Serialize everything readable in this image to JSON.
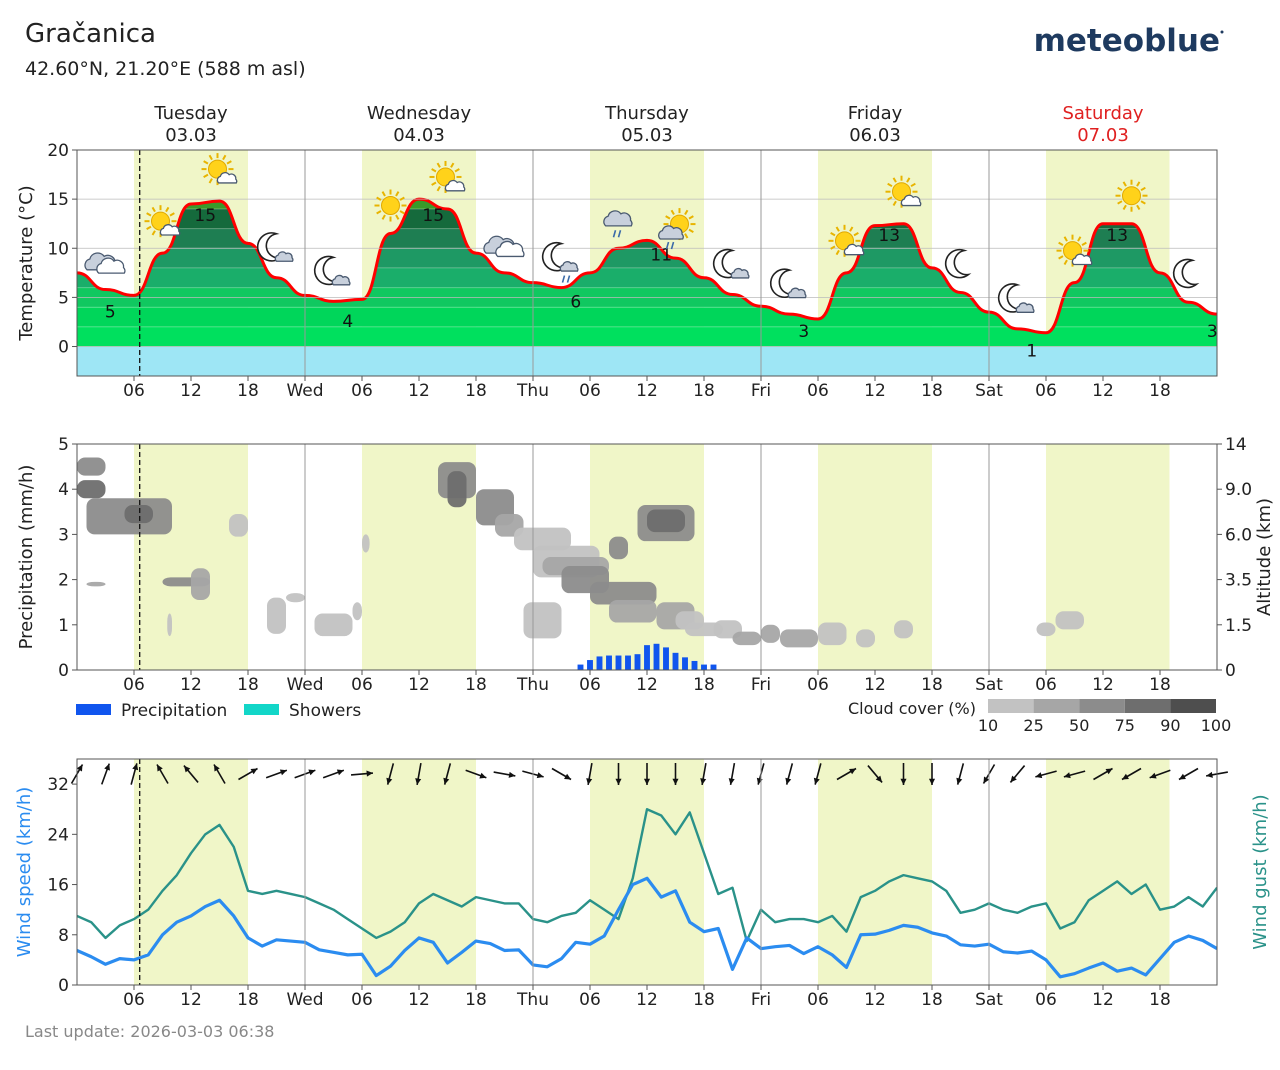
{
  "header": {
    "location": "Gračanica",
    "coords": "42.60°N, 21.20°E (588 m asl)",
    "logo": "meteoblue"
  },
  "footer": {
    "last_update": "Last update: 2026-03-03 06:38"
  },
  "colors": {
    "daylight": "#f0f6c8",
    "temp_line": "#ff0000",
    "precip": "#1055ee",
    "showers": "#12d6c8",
    "wind_speed": "#2b8cf0",
    "wind_gust": "#2a9289",
    "saturday": "#e02020",
    "cold_band": "#9ee6f5"
  },
  "chart_data": [
    {
      "type": "line",
      "panel": "temperature",
      "ylabel": "Temperature (°C)",
      "ylim": [
        -3,
        20
      ],
      "yticks": [
        0,
        5,
        10,
        15,
        20
      ],
      "grid": true,
      "days": [
        {
          "name": "Tuesday",
          "date": "03.03",
          "weekend": false
        },
        {
          "name": "Wednesday",
          "date": "04.03",
          "weekend": false
        },
        {
          "name": "Thursday",
          "date": "05.03",
          "weekend": false
        },
        {
          "name": "Friday",
          "date": "06.03",
          "weekend": false
        },
        {
          "name": "Saturday",
          "date": "07.03",
          "weekend": true
        }
      ],
      "xtick_labels": [
        "06",
        "12",
        "18",
        "Wed",
        "06",
        "12",
        "18",
        "Thu",
        "06",
        "12",
        "18",
        "Fri",
        "06",
        "12",
        "18",
        "Sat",
        "06",
        "12",
        "18"
      ],
      "daylight_hours": [
        [
          6,
          18
        ],
        [
          6,
          18
        ],
        [
          6,
          18
        ],
        [
          6,
          18
        ],
        [
          6,
          19
        ]
      ],
      "current_time_hour": 6.6,
      "x_hours": [
        0,
        3,
        6,
        9,
        12,
        15,
        18,
        21,
        24,
        27,
        30,
        33,
        36,
        39,
        42,
        45,
        48,
        51,
        54,
        57,
        60,
        63,
        66,
        69,
        72,
        75,
        78,
        81,
        84,
        87,
        90,
        93,
        96,
        99,
        102,
        105,
        108,
        111,
        114,
        117,
        120
      ],
      "temperature": [
        7.5,
        5.8,
        5.2,
        9.5,
        14.5,
        14.8,
        10.5,
        7,
        5.2,
        4.6,
        4.8,
        11.5,
        15,
        14,
        9.5,
        7.5,
        6.5,
        6,
        7.5,
        10,
        10.8,
        9,
        7,
        5.3,
        4.1,
        3.3,
        2.8,
        7.5,
        12.3,
        12.5,
        8,
        5.5,
        3.5,
        1.8,
        1.4,
        6.5,
        12.5,
        12.5,
        7.5,
        4.5,
        3.3
      ],
      "min_max_labels": [
        {
          "x": 3.5,
          "value": "5"
        },
        {
          "x": 13.5,
          "value": "15"
        },
        {
          "x": 28.5,
          "value": "4"
        },
        {
          "x": 37.5,
          "value": "15"
        },
        {
          "x": 52.5,
          "value": "6"
        },
        {
          "x": 61.5,
          "value": "11"
        },
        {
          "x": 76.5,
          "value": "3"
        },
        {
          "x": 85.5,
          "value": "13"
        },
        {
          "x": 100.5,
          "value": "1"
        },
        {
          "x": 109.5,
          "value": "13"
        },
        {
          "x": 119.5,
          "value": "3"
        }
      ],
      "weather_icons": [
        {
          "x": 3,
          "name": "cloud-icon"
        },
        {
          "x": 9,
          "name": "sun-cloud-icon"
        },
        {
          "x": 15,
          "name": "sun-cloud-icon"
        },
        {
          "x": 21,
          "name": "moon-cloud-icon"
        },
        {
          "x": 27,
          "name": "moon-cloud-icon"
        },
        {
          "x": 33,
          "name": "sun-icon"
        },
        {
          "x": 39,
          "name": "sun-cloud-icon"
        },
        {
          "x": 45,
          "name": "cloud-icon"
        },
        {
          "x": 51,
          "name": "moon-rain-icon"
        },
        {
          "x": 57,
          "name": "cloud-rain-icon"
        },
        {
          "x": 63,
          "name": "sun-rain-icon"
        },
        {
          "x": 69,
          "name": "moon-cloud-icon"
        },
        {
          "x": 75,
          "name": "moon-cloud-icon"
        },
        {
          "x": 81,
          "name": "sun-cloud-icon"
        },
        {
          "x": 87,
          "name": "sun-cloud-icon"
        },
        {
          "x": 93,
          "name": "moon-icon"
        },
        {
          "x": 99,
          "name": "moon-cloud-icon"
        },
        {
          "x": 105,
          "name": "sun-cloud-icon"
        },
        {
          "x": 111,
          "name": "sun-icon"
        },
        {
          "x": 117,
          "name": "moon-icon"
        }
      ]
    },
    {
      "type": "bar",
      "panel": "precipitation",
      "ylabel": "Precipitation (mm/h)",
      "y2label": "Altitude (km)",
      "ylim": [
        0,
        5
      ],
      "yticks": [
        0,
        1,
        2,
        3,
        4,
        5
      ],
      "y2ticks": [
        "0",
        "1.5",
        "3.5",
        "6.0",
        "9.0",
        "14"
      ],
      "legend": [
        {
          "name": "Precipitation",
          "color_key": "precip"
        },
        {
          "name": "Showers",
          "color_key": "showers"
        }
      ],
      "cloud_legend_title": "Cloud cover (%)",
      "cloud_legend_values": [
        "10",
        "25",
        "50",
        "75",
        "90",
        "100"
      ],
      "cloud_legend_colors": [
        "#dcdcdc",
        "#c2c2c2",
        "#a6a6a6",
        "#8c8c8c",
        "#6e6e6e",
        "#4e4e4e"
      ],
      "precip_x_hours": [
        53,
        54,
        55,
        56,
        57,
        58,
        59,
        60,
        61,
        62,
        63,
        64,
        65,
        66,
        67
      ],
      "precip_values": [
        0.12,
        0.22,
        0.3,
        0.32,
        0.32,
        0.32,
        0.35,
        0.55,
        0.58,
        0.5,
        0.38,
        0.28,
        0.2,
        0.12,
        0.12
      ],
      "clouds": [
        {
          "h0": 0,
          "h1": 3,
          "y": 4.5,
          "h": 0.4,
          "cover": 75
        },
        {
          "h0": 0,
          "h1": 3,
          "y": 4.0,
          "h": 0.4,
          "cover": 90
        },
        {
          "h0": 1,
          "h1": 10,
          "y": 3.4,
          "h": 0.8,
          "cover": 75
        },
        {
          "h0": 5,
          "h1": 8,
          "y": 3.45,
          "h": 0.4,
          "cover": 90
        },
        {
          "h0": 16,
          "h1": 18,
          "y": 3.2,
          "h": 0.5,
          "cover": 25
        },
        {
          "h0": 1,
          "h1": 3,
          "y": 1.9,
          "h": 0.1,
          "cover": 50
        },
        {
          "h0": 9,
          "h1": 14,
          "y": 1.95,
          "h": 0.2,
          "cover": 75
        },
        {
          "h0": 12,
          "h1": 14,
          "y": 1.9,
          "h": 0.7,
          "cover": 50
        },
        {
          "h0": 9.5,
          "h1": 10,
          "y": 1.0,
          "h": 0.5,
          "cover": 25
        },
        {
          "h0": 20,
          "h1": 22,
          "y": 1.2,
          "h": 0.8,
          "cover": 25
        },
        {
          "h0": 22,
          "h1": 24,
          "y": 1.6,
          "h": 0.2,
          "cover": 25
        },
        {
          "h0": 25,
          "h1": 29,
          "y": 1.0,
          "h": 0.5,
          "cover": 25
        },
        {
          "h0": 29,
          "h1": 30,
          "y": 1.3,
          "h": 0.4,
          "cover": 25
        },
        {
          "h0": 38,
          "h1": 42,
          "y": 4.2,
          "h": 0.8,
          "cover": 75
        },
        {
          "h0": 39,
          "h1": 41,
          "y": 4.0,
          "h": 0.8,
          "cover": 90
        },
        {
          "h0": 42,
          "h1": 46,
          "y": 3.6,
          "h": 0.8,
          "cover": 75
        },
        {
          "h0": 44,
          "h1": 47,
          "y": 3.2,
          "h": 0.5,
          "cover": 50
        },
        {
          "h0": 46,
          "h1": 52,
          "y": 2.9,
          "h": 0.5,
          "cover": 25
        },
        {
          "h0": 48,
          "h1": 55,
          "y": 2.4,
          "h": 0.7,
          "cover": 25
        },
        {
          "h0": 49,
          "h1": 56,
          "y": 2.3,
          "h": 0.4,
          "cover": 50
        },
        {
          "h0": 51,
          "h1": 56,
          "y": 2.0,
          "h": 0.6,
          "cover": 75
        },
        {
          "h0": 54,
          "h1": 61,
          "y": 1.7,
          "h": 0.5,
          "cover": 75
        },
        {
          "h0": 56,
          "h1": 61,
          "y": 1.3,
          "h": 0.5,
          "cover": 50
        },
        {
          "h0": 61,
          "h1": 65,
          "y": 1.2,
          "h": 0.6,
          "cover": 50
        },
        {
          "h0": 63,
          "h1": 66,
          "y": 1.1,
          "h": 0.4,
          "cover": 25
        },
        {
          "h0": 64,
          "h1": 68,
          "y": 0.9,
          "h": 0.3,
          "cover": 25
        },
        {
          "h0": 47,
          "h1": 51,
          "y": 1.1,
          "h": 0.8,
          "cover": 25
        },
        {
          "h0": 30,
          "h1": 30.8,
          "y": 2.8,
          "h": 0.4,
          "cover": 25
        },
        {
          "h0": 56,
          "h1": 58,
          "y": 2.7,
          "h": 0.5,
          "cover": 75
        },
        {
          "h0": 59,
          "h1": 65,
          "y": 3.25,
          "h": 0.8,
          "cover": 75
        },
        {
          "h0": 60,
          "h1": 64,
          "y": 3.3,
          "h": 0.5,
          "cover": 90
        },
        {
          "h0": 67,
          "h1": 70,
          "y": 0.9,
          "h": 0.4,
          "cover": 25
        },
        {
          "h0": 69,
          "h1": 72,
          "y": 0.7,
          "h": 0.3,
          "cover": 50
        },
        {
          "h0": 72,
          "h1": 74,
          "y": 0.8,
          "h": 0.4,
          "cover": 50
        },
        {
          "h0": 74,
          "h1": 78,
          "y": 0.7,
          "h": 0.4,
          "cover": 50
        },
        {
          "h0": 78,
          "h1": 81,
          "y": 0.8,
          "h": 0.5,
          "cover": 25
        },
        {
          "h0": 82,
          "h1": 84,
          "y": 0.7,
          "h": 0.4,
          "cover": 25
        },
        {
          "h0": 86,
          "h1": 88,
          "y": 0.9,
          "h": 0.4,
          "cover": 25
        },
        {
          "h0": 103,
          "h1": 106,
          "y": 1.1,
          "h": 0.4,
          "cover": 25
        },
        {
          "h0": 101,
          "h1": 103,
          "y": 0.9,
          "h": 0.3,
          "cover": 25
        }
      ]
    },
    {
      "type": "line",
      "panel": "wind",
      "ylabel": "Wind speed (km/h)",
      "y2label": "Wind gust (km/h)",
      "ylim": [
        0,
        36
      ],
      "yticks": [
        0,
        8,
        16,
        24,
        32
      ],
      "x_hours": [
        0,
        1.5,
        3,
        4.5,
        6,
        7.5,
        9,
        10.5,
        12,
        13.5,
        15,
        16.5,
        18,
        19.5,
        21,
        22.5,
        24,
        25.5,
        27,
        28.5,
        30,
        31.5,
        33,
        34.5,
        36,
        37.5,
        39,
        40.5,
        42,
        43.5,
        45,
        46.5,
        48,
        49.5,
        51,
        52.5,
        54,
        55.5,
        57,
        58.5,
        60,
        61.5,
        63,
        64.5,
        66,
        67.5,
        69,
        70.5,
        72,
        73.5,
        75,
        76.5,
        78,
        79.5,
        81,
        82.5,
        84,
        85.5,
        87,
        88.5,
        90,
        91.5,
        93,
        94.5,
        96,
        97.5,
        99,
        100.5,
        102,
        103.5,
        105,
        106.5,
        108,
        109.5,
        111,
        112.5,
        114,
        115.5,
        117,
        118.5,
        120
      ],
      "wind_speed": [
        5.5,
        4.5,
        3.3,
        4.2,
        4.0,
        4.8,
        8,
        10,
        11,
        12.5,
        13.5,
        11,
        7.5,
        6.2,
        7.2,
        7.0,
        6.8,
        5.6,
        5.2,
        4.8,
        4.9,
        1.5,
        3.0,
        5.5,
        7.5,
        6.8,
        3.5,
        5.2,
        7.0,
        6.6,
        5.5,
        5.6,
        3.2,
        2.9,
        4.2,
        6.8,
        6.5,
        7.8,
        12,
        16,
        17,
        14,
        15,
        10,
        8.5,
        9,
        2.5,
        7.5,
        5.8,
        6.1,
        6.3,
        5.0,
        6.1,
        4.8,
        2.8,
        8,
        8.1,
        8.7,
        9.5,
        9.2,
        8.3,
        7.8,
        6.4,
        6.2,
        6.5,
        5.3,
        5.1,
        5.4,
        4.0,
        1.3,
        1.8,
        2.7,
        3.5,
        2.2,
        2.7,
        1.6,
        4.2,
        6.8,
        7.8,
        7.1,
        5.8
      ],
      "wind_gust": [
        11,
        10,
        7.5,
        9.5,
        10.5,
        12,
        15,
        17.5,
        21,
        24,
        25.5,
        22,
        15,
        14.5,
        15,
        14.5,
        14,
        13,
        12,
        10.5,
        9.0,
        7.5,
        8.5,
        10,
        13,
        14.5,
        13.5,
        12.5,
        14,
        13.5,
        13,
        13,
        10.5,
        10,
        11,
        11.5,
        13.5,
        12,
        10.5,
        17,
        28,
        27,
        24,
        27.5,
        21,
        14.5,
        15.5,
        7,
        12,
        10,
        10.5,
        10.5,
        10,
        11,
        8.5,
        14,
        15,
        16.5,
        17.5,
        17,
        16.5,
        15,
        11.5,
        12,
        13,
        12,
        11.5,
        12.5,
        13,
        9,
        10,
        13.5,
        15,
        16.5,
        14.5,
        16,
        12,
        12.5,
        14,
        12.5,
        15.5
      ],
      "wind_dir_hours": [
        0,
        3,
        6,
        9,
        12,
        15,
        18,
        21,
        24,
        27,
        30,
        33,
        36,
        39,
        42,
        45,
        48,
        51,
        54,
        57,
        60,
        63,
        66,
        69,
        72,
        75,
        78,
        81,
        84,
        87,
        90,
        93,
        96,
        99,
        102,
        105,
        108,
        111,
        114,
        117,
        120
      ],
      "wind_dir_deg": [
        210,
        200,
        195,
        150,
        140,
        150,
        240,
        250,
        250,
        250,
        265,
        15,
        10,
        15,
        290,
        280,
        285,
        300,
        10,
        0,
        0,
        0,
        10,
        10,
        15,
        15,
        15,
        240,
        320,
        0,
        0,
        15,
        30,
        40,
        75,
        75,
        240,
        60,
        70,
        60,
        80
      ]
    }
  ]
}
